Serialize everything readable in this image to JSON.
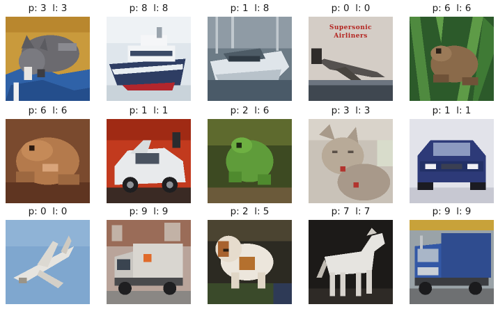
{
  "figure": {
    "panels": [
      {
        "caption": "p: 3  l: 3",
        "pred": 3,
        "label": 3,
        "subject": "cat"
      },
      {
        "caption": "p: 8  l: 8",
        "pred": 8,
        "label": 8,
        "subject": "ship"
      },
      {
        "caption": "p: 1  l: 8",
        "pred": 1,
        "label": 8,
        "subject": "ship"
      },
      {
        "caption": "p: 0  l: 0",
        "pred": 0,
        "label": 0,
        "subject": "airplane"
      },
      {
        "caption": "p: 6  l: 6",
        "pred": 6,
        "label": 6,
        "subject": "frog"
      },
      {
        "caption": "p: 6  l: 6",
        "pred": 6,
        "label": 6,
        "subject": "frog"
      },
      {
        "caption": "p: 1  l: 1",
        "pred": 1,
        "label": 1,
        "subject": "automobile"
      },
      {
        "caption": "p: 2  l: 6",
        "pred": 2,
        "label": 6,
        "subject": "frog"
      },
      {
        "caption": "p: 3  l: 3",
        "pred": 3,
        "label": 3,
        "subject": "cat"
      },
      {
        "caption": "p: 1  l: 1",
        "pred": 1,
        "label": 1,
        "subject": "automobile"
      },
      {
        "caption": "p: 0  l: 0",
        "pred": 0,
        "label": 0,
        "subject": "airplane"
      },
      {
        "caption": "p: 9  l: 9",
        "pred": 9,
        "label": 9,
        "subject": "truck"
      },
      {
        "caption": "p: 2  l: 5",
        "pred": 2,
        "label": 5,
        "subject": "dog"
      },
      {
        "caption": "p: 7  l: 7",
        "pred": 7,
        "label": 7,
        "subject": "horse"
      },
      {
        "caption": "p: 9  l: 9",
        "pred": 9,
        "label": 9,
        "subject": "truck"
      }
    ],
    "book_cover_text": [
      "Supersonic",
      "Airliners"
    ]
  }
}
